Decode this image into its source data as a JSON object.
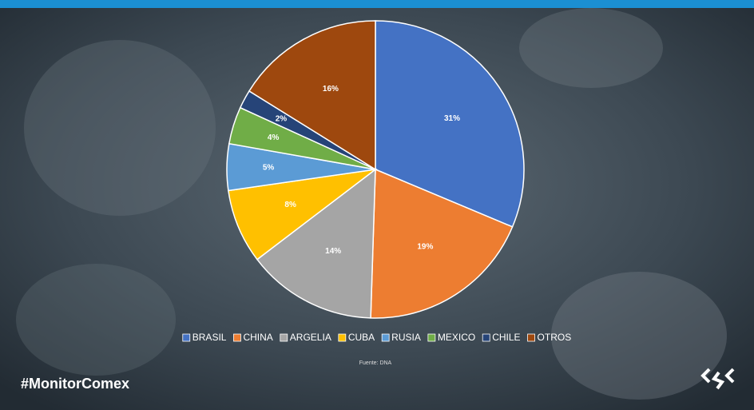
{
  "chart_data": {
    "type": "pie",
    "categories": [
      "BRASIL",
      "CHINA",
      "ARGELIA",
      "CUBA",
      "RUSIA",
      "MEXICO",
      "CHILE",
      "OTROS"
    ],
    "values": [
      31,
      19,
      14,
      8,
      5,
      4,
      2,
      16
    ],
    "value_labels": [
      "31%",
      "19%",
      "14%",
      "8%",
      "5%",
      "4%",
      "2%",
      "16%"
    ],
    "colors": [
      "#4472c4",
      "#ed7d31",
      "#a5a5a5",
      "#ffc000",
      "#5b9bd5",
      "#70ad47",
      "#264478",
      "#9e480e"
    ],
    "legend": "bottom",
    "source": "Fuente: DNA"
  },
  "footer": {
    "hashtag": "#MonitorComex"
  }
}
